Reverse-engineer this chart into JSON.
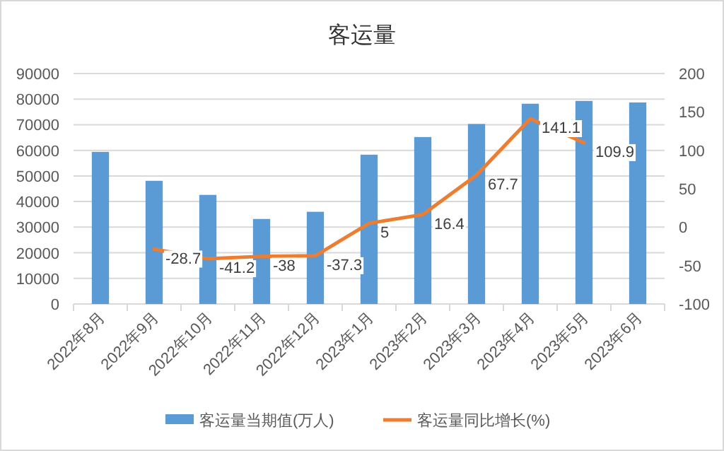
{
  "chart_data": {
    "type": "bar",
    "title": "客运量",
    "categories": [
      "2022年8月",
      "2022年9月",
      "2022年10月",
      "2022年11月",
      "2022年12月",
      "2023年1月",
      "2023年2月",
      "2023年3月",
      "2023年4月",
      "2023年5月",
      "2023年6月"
    ],
    "series": [
      {
        "name": "客运量当期值(万人)",
        "color": "#5b9bd5",
        "values": [
          59400,
          48100,
          42600,
          33200,
          36000,
          58300,
          65200,
          70300,
          78200,
          79300,
          78700
        ]
      },
      {
        "name": "客运量同比增长(%)",
        "type": "line",
        "axis": "y2",
        "color": "#ed7d31",
        "values": [
          null,
          -28.7,
          -41.2,
          -38,
          -37.3,
          5,
          16.4,
          67.7,
          141.1,
          109.9,
          null
        ],
        "value_labels": [
          null,
          "-28.7",
          "-41.2",
          "-38",
          "-37.3",
          "5",
          "16.4",
          "67.7",
          "141.1",
          "109.9",
          null
        ]
      }
    ],
    "ylim": [
      0,
      90000
    ],
    "yticks": [
      0,
      10000,
      20000,
      30000,
      40000,
      50000,
      60000,
      70000,
      80000,
      90000
    ],
    "y2lim": [
      -100,
      200
    ],
    "y2ticks": [
      -100,
      -50,
      0,
      50,
      100,
      150,
      200
    ],
    "grid": "y",
    "legend": "bottom",
    "marker": "none"
  }
}
